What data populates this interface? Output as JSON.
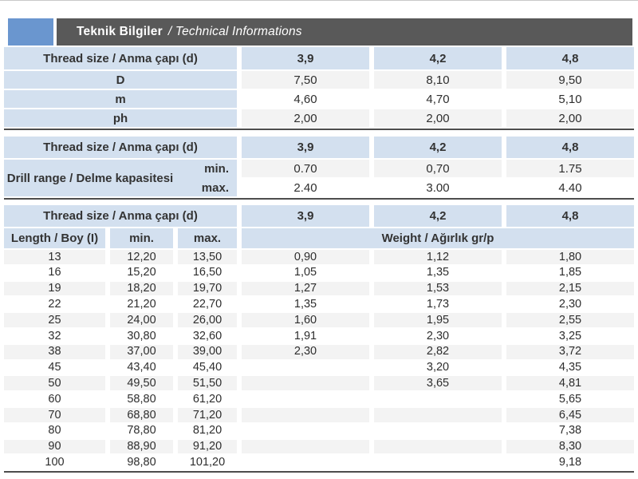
{
  "header": {
    "title_bold": "Teknik Bilgiler",
    "title_italic": "/ Technical Informations"
  },
  "colors": {
    "accent_blue": "#6a96cf",
    "bar_gray": "#595959",
    "header_blue": "#d3e0ef",
    "row_gray": "#f3f3f3",
    "row_white": "#ffffff",
    "table_border_dark": "#4d4d4d"
  },
  "thread_header": {
    "label": "Thread size / Anma çapı (d)",
    "sizes": [
      "3,9",
      "4,2",
      "4,8"
    ]
  },
  "dimensions_table": {
    "rows": [
      {
        "label": "D",
        "values": [
          "7,50",
          "8,10",
          "9,50"
        ]
      },
      {
        "label": "m",
        "values": [
          "4,60",
          "4,70",
          "5,10"
        ]
      },
      {
        "label": "ph",
        "values": [
          "2,00",
          "2,00",
          "2,00"
        ]
      }
    ]
  },
  "drill_range_table": {
    "label": "Drill range / Delme kapasitesi",
    "min_label": "min.",
    "max_label": "max.",
    "rows": [
      {
        "label": "min.",
        "values": [
          "0.70",
          "0,70",
          "1.75"
        ]
      },
      {
        "label": "max.",
        "values": [
          "2.40",
          "3.00",
          "4.40"
        ]
      }
    ]
  },
  "length_weight_table": {
    "length_label": "Length / Boy (I)",
    "min_label": "min.",
    "max_label": "max.",
    "weight_label": "Weight / Ağırlık gr/p",
    "rows": [
      {
        "length": "13",
        "min": "12,20",
        "max": "13,50",
        "weights": [
          "0,90",
          "1,12",
          "1,80"
        ]
      },
      {
        "length": "16",
        "min": "15,20",
        "max": "16,50",
        "weights": [
          "1,05",
          "1,35",
          "1,85"
        ]
      },
      {
        "length": "19",
        "min": "18,20",
        "max": "19,70",
        "weights": [
          "1,27",
          "1,53",
          "2,15"
        ]
      },
      {
        "length": "22",
        "min": "21,20",
        "max": "22,70",
        "weights": [
          "1,35",
          "1,73",
          "2,30"
        ]
      },
      {
        "length": "25",
        "min": "24,00",
        "max": "26,00",
        "weights": [
          "1,60",
          "1,95",
          "2,55"
        ]
      },
      {
        "length": "32",
        "min": "30,80",
        "max": "32,60",
        "weights": [
          "1,91",
          "2,30",
          "3,25"
        ]
      },
      {
        "length": "38",
        "min": "37,00",
        "max": "39,00",
        "weights": [
          "2,30",
          "2,82",
          "3,72"
        ]
      },
      {
        "length": "45",
        "min": "43,40",
        "max": "45,40",
        "weights": [
          "",
          "3,20",
          "4,35"
        ]
      },
      {
        "length": "50",
        "min": "49,50",
        "max": "51,50",
        "weights": [
          "",
          "3,65",
          "4,81"
        ]
      },
      {
        "length": "60",
        "min": "58,80",
        "max": "61,20",
        "weights": [
          "",
          "",
          "5,65"
        ]
      },
      {
        "length": "70",
        "min": "68,80",
        "max": "71,20",
        "weights": [
          "",
          "",
          "6,45"
        ]
      },
      {
        "length": "80",
        "min": "78,80",
        "max": "81,20",
        "weights": [
          "",
          "",
          "7,38"
        ]
      },
      {
        "length": "90",
        "min": "88,90",
        "max": "91,20",
        "weights": [
          "",
          "",
          "8,30"
        ]
      },
      {
        "length": "100",
        "min": "98,80",
        "max": "101,20",
        "weights": [
          "",
          "",
          "9,18"
        ]
      }
    ]
  }
}
